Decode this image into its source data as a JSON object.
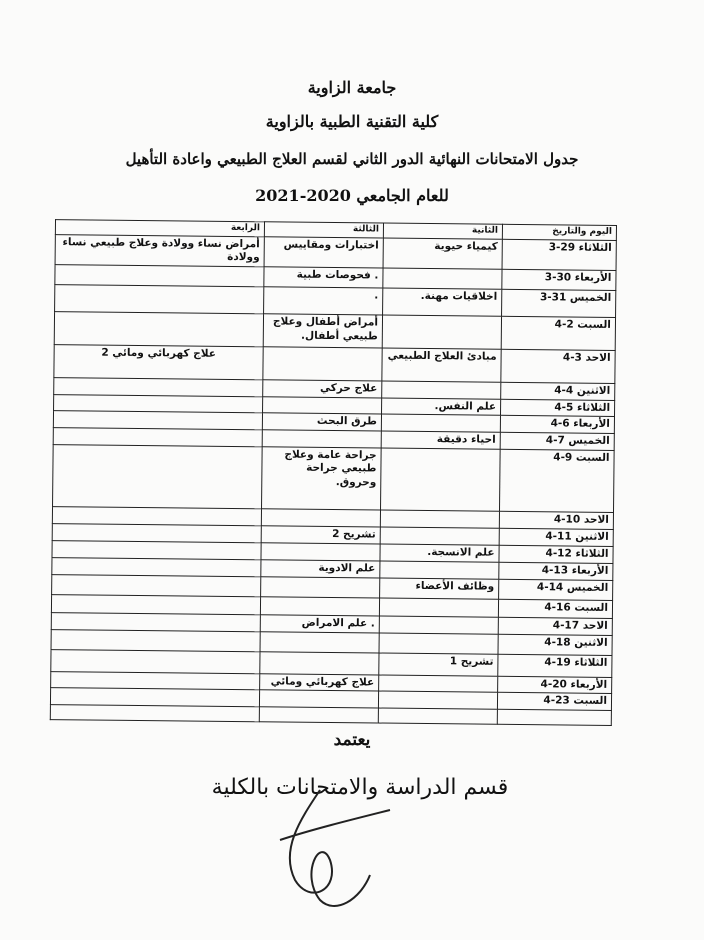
{
  "header": {
    "university": "جامعة الزاوية",
    "college": "كلية التقنية الطبية بالزاوية",
    "schedule_title": "جدول الامتحانات النهائية الدور الثاني لقسم العلاج الطبيعي واعادة التأهيل",
    "academic_year": "للعام الجامعي 2020-2021"
  },
  "table": {
    "columns": [
      "اليوم والتاريخ",
      "الثانية",
      "الثالثة",
      "الرابعة"
    ],
    "rows": [
      {
        "day": "الثلاثاء 29-3",
        "second": "كيمياء حيوية",
        "third": "اختبارات ومقاييس",
        "fourth": "أمراض نساء وولادة وعلاج طبيعي نساء وولادة"
      },
      {
        "day": "الأربعاء 30-3",
        "second": "",
        "third": ". فحوصات طبية",
        "fourth": ""
      },
      {
        "day": "الخميس 31-3",
        "second": "اخلاقيات مهنة.",
        "third": ".",
        "fourth": ""
      },
      {
        "day": "السبت 2-4",
        "second": "",
        "third": "أمراض أطفال وعلاج طبيعي أطفال.",
        "fourth": ""
      },
      {
        "day": "الاحد 3-4",
        "second": "مبادئ العلاج الطبيعي",
        "third": "",
        "fourth": "علاج كهربائي ومائي 2"
      },
      {
        "day": "الاثنين 4-4",
        "second": "",
        "third": "علاج حركي",
        "fourth": ""
      },
      {
        "day": "الثلاثاء 5-4",
        "second": "علم النفس.",
        "third": "",
        "fourth": ""
      },
      {
        "day": "الأربعاء 6-4",
        "second": "",
        "third": "طرق البحث",
        "fourth": ""
      },
      {
        "day": "الخميس 7-4",
        "second": "احياء دقيقة",
        "third": "",
        "fourth": ""
      },
      {
        "day": "السبت 9-4",
        "second": "",
        "third": "جراحة عامة وعلاج طبيعي جراحة وحروق.",
        "fourth": ""
      },
      {
        "day": "الاحد 10-4",
        "second": "",
        "third": "",
        "fourth": ""
      },
      {
        "day": "الاثنين 11-4",
        "second": "",
        "third": "تشريح 2",
        "fourth": ""
      },
      {
        "day": "الثلاثاء 12-4",
        "second": "علم الانسجة.",
        "third": "",
        "fourth": ""
      },
      {
        "day": "الأربعاء 13-4",
        "second": "",
        "third": "علم الادوية",
        "fourth": ""
      },
      {
        "day": "الخميس 14-4",
        "second": "وظائف الأعضاء",
        "third": "",
        "fourth": ""
      },
      {
        "day": "السبت 16-4",
        "second": "",
        "third": "",
        "fourth": ""
      },
      {
        "day": "الاحد 17-4",
        "second": "",
        "third": ". علم الامراض",
        "fourth": ""
      },
      {
        "day": "الاثنين 18-4",
        "second": "",
        "third": "",
        "fourth": ""
      },
      {
        "day": "الثلاثاء 19-4",
        "second": "تشريح 1",
        "third": "",
        "fourth": ""
      },
      {
        "day": "الأربعاء 20-4",
        "second": "",
        "third": "علاج كهربائي ومائي",
        "fourth": ""
      },
      {
        "day": "السبت 23-4",
        "second": "",
        "third": "",
        "fourth": ""
      },
      {
        "day": "",
        "second": "",
        "third": "",
        "fourth": ""
      }
    ]
  },
  "footer": {
    "approve": "يعتمد",
    "department": "قسم الدراسة والامتحانات بالكلية"
  }
}
